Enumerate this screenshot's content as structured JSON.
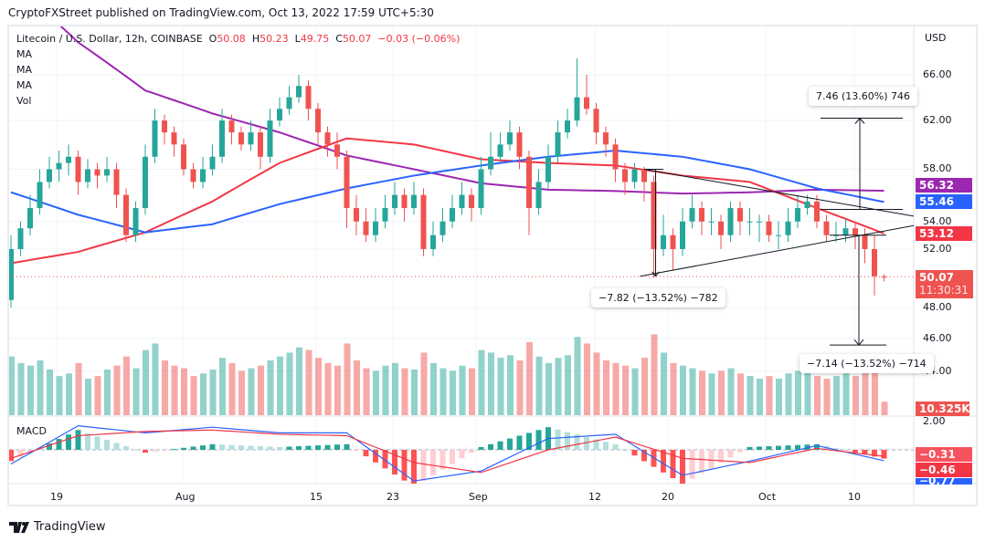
{
  "header": {
    "published": "CryptoFXStreet published on TradingView.com, Oct 13, 2022 17:59 UTC+5:30"
  },
  "legend": {
    "symbol": "Litecoin / U.S. Dollar, 12h, COINBASE",
    "o_label": "O",
    "o": "50.08",
    "h_label": "H",
    "h": "50.23",
    "l_label": "L",
    "l": "49.75",
    "c_label": "C",
    "c": "50.07",
    "change": "−0.03 (−0.06%)",
    "indicators": [
      "MA",
      "MA",
      "MA",
      "Vol"
    ],
    "macd": "MACD"
  },
  "price_axis": {
    "currency": "USD",
    "ticks": [
      "66.00",
      "62.00",
      "58.00",
      "54.00",
      "52.00",
      "48.00",
      "46.00",
      "44.00"
    ],
    "macd_ticks": [
      "2.00"
    ]
  },
  "labels": {
    "ma_purple": "56.32",
    "ma_blue": "55.46",
    "ma_red": "53.12",
    "last_price": "50.07",
    "countdown": "11:30:31",
    "volume": "10.325K",
    "macd_hist": "−0.31",
    "macd_signal": "−0.46",
    "macd_line": "−0.77"
  },
  "measures": {
    "up": "7.46 (13.60%) 746",
    "down_left": "−7.82 (−13.52%) −782",
    "down_right": "−7.14 (−13.52%) −714"
  },
  "time_axis": [
    "19",
    "Aug",
    "15",
    "23",
    "Sep",
    "12",
    "20",
    "Oct",
    "10"
  ],
  "footer": {
    "brand": "TradingView"
  },
  "colors": {
    "up": "#26a69a",
    "down": "#ef5350",
    "ma_purple": "#9c27b0",
    "ma_blue": "#2962ff",
    "ma_red": "#f23645",
    "macd": "#2962ff",
    "signal": "#f23645"
  },
  "chart_data": {
    "type": "candlestick",
    "title": "Litecoin / U.S. Dollar, 12h, COINBASE",
    "y_scale": "log",
    "ylim": [
      43,
      70
    ],
    "grid": true,
    "start_date": "2022-07-14",
    "end_date": "2022-10-13",
    "ohlc": [
      [
        48.5,
        53,
        48,
        52
      ],
      [
        52,
        54,
        51.5,
        53.5
      ],
      [
        53.5,
        56,
        53,
        55
      ],
      [
        55,
        58,
        54.5,
        57
      ],
      [
        57,
        59,
        56.5,
        58
      ],
      [
        58,
        59.5,
        57,
        58.5
      ],
      [
        58.5,
        60,
        57.5,
        59
      ],
      [
        59,
        59.5,
        56,
        57
      ],
      [
        57,
        58.8,
        56.5,
        58
      ],
      [
        58,
        58.5,
        56.5,
        57.5
      ],
      [
        57.5,
        59,
        57,
        58
      ],
      [
        58,
        58.5,
        55,
        56
      ],
      [
        56,
        56.5,
        52.5,
        53
      ],
      [
        53,
        55.5,
        52.5,
        55
      ],
      [
        55,
        60,
        54.5,
        59
      ],
      [
        59,
        63,
        58.5,
        62
      ],
      [
        62,
        62.5,
        60,
        61
      ],
      [
        61,
        61.5,
        59,
        60
      ],
      [
        60,
        60.5,
        57.5,
        58
      ],
      [
        58,
        58.5,
        56.5,
        57
      ],
      [
        57,
        59,
        56.5,
        58
      ],
      [
        58,
        60,
        57.5,
        59
      ],
      [
        59,
        63,
        58.5,
        62
      ],
      [
        62,
        62.5,
        60,
        61
      ],
      [
        61,
        61.5,
        59.5,
        60
      ],
      [
        60,
        62,
        59.5,
        61
      ],
      [
        61,
        61.5,
        58,
        59
      ],
      [
        59,
        63,
        58.5,
        62
      ],
      [
        62,
        64,
        61.5,
        63
      ],
      [
        63,
        65,
        62.5,
        64
      ],
      [
        64,
        66,
        63.5,
        65
      ],
      [
        65,
        65.5,
        62,
        63
      ],
      [
        63,
        63.5,
        60,
        61
      ],
      [
        61,
        61.5,
        59,
        60
      ],
      [
        60,
        61,
        58,
        59
      ],
      [
        59,
        59.5,
        53.5,
        55
      ],
      [
        55,
        56,
        53,
        54
      ],
      [
        54,
        55,
        52.5,
        53
      ],
      [
        53,
        55,
        52.5,
        54
      ],
      [
        54,
        56,
        53.5,
        55
      ],
      [
        55,
        57,
        54.5,
        56
      ],
      [
        56,
        56.5,
        54,
        55
      ],
      [
        55,
        57,
        54.5,
        56
      ],
      [
        56,
        56.5,
        51.5,
        52
      ],
      [
        52,
        54,
        51.5,
        53
      ],
      [
        53,
        55,
        52.5,
        54
      ],
      [
        54,
        56,
        53.5,
        55
      ],
      [
        55,
        57,
        54.5,
        56
      ],
      [
        56,
        56.5,
        54,
        55
      ],
      [
        55,
        59,
        54.5,
        58
      ],
      [
        58,
        61,
        57.5,
        59
      ],
      [
        59,
        61,
        58.5,
        60
      ],
      [
        60,
        62,
        59.5,
        61
      ],
      [
        61,
        61.5,
        58,
        59
      ],
      [
        59,
        59.5,
        53,
        55
      ],
      [
        55,
        58,
        54.5,
        57
      ],
      [
        57,
        60,
        56.5,
        59
      ],
      [
        59,
        62,
        58.5,
        61
      ],
      [
        61,
        63,
        60.5,
        62
      ],
      [
        62,
        67.5,
        61.5,
        64
      ],
      [
        64,
        66,
        62.5,
        63
      ],
      [
        63,
        63.5,
        60,
        61
      ],
      [
        61,
        61.5,
        59,
        60
      ],
      [
        60,
        60.5,
        57,
        58
      ],
      [
        58,
        58.5,
        56,
        57
      ],
      [
        57,
        58.5,
        56.5,
        58
      ],
      [
        58,
        58.2,
        55.5,
        57
      ],
      [
        57,
        57.5,
        50,
        52
      ],
      [
        52,
        54.5,
        51.5,
        53
      ],
      [
        53,
        53.5,
        50.5,
        52
      ],
      [
        52,
        55,
        51.5,
        54
      ],
      [
        54,
        56,
        53.5,
        55
      ],
      [
        55,
        55.5,
        53,
        54
      ],
      [
        54,
        55,
        53,
        54
      ],
      [
        54,
        54.5,
        52,
        53
      ],
      [
        53,
        55.5,
        52.5,
        55
      ],
      [
        55,
        55.5,
        53,
        54
      ],
      [
        54,
        55,
        53,
        54
      ],
      [
        54,
        54.5,
        52.5,
        54
      ],
      [
        54,
        54.5,
        52.5,
        53
      ],
      [
        53,
        54,
        52,
        53
      ],
      [
        53,
        55,
        52.5,
        54
      ],
      [
        54,
        56,
        53.5,
        55
      ],
      [
        55,
        56,
        54.5,
        55.5
      ],
      [
        55.5,
        56,
        53.5,
        54
      ],
      [
        54,
        54.5,
        52.5,
        53
      ],
      [
        53,
        54,
        52.5,
        53
      ],
      [
        53,
        54.2,
        52.5,
        53.5
      ],
      [
        53.5,
        54,
        52,
        53
      ],
      [
        53,
        53.5,
        51,
        52
      ],
      [
        52,
        53,
        48.8,
        50.1
      ],
      [
        50.08,
        50.23,
        49.75,
        50.07
      ]
    ],
    "volume_k": [
      45,
      40,
      38,
      42,
      35,
      30,
      32,
      40,
      28,
      30,
      35,
      38,
      45,
      36,
      50,
      55,
      42,
      38,
      36,
      30,
      32,
      35,
      44,
      40,
      34,
      36,
      38,
      42,
      45,
      48,
      52,
      50,
      44,
      40,
      38,
      55,
      42,
      36,
      34,
      38,
      40,
      36,
      35,
      48,
      40,
      36,
      34,
      38,
      36,
      50,
      48,
      44,
      46,
      42,
      56,
      45,
      40,
      44,
      46,
      60,
      55,
      48,
      42,
      40,
      38,
      36,
      44,
      62,
      48,
      40,
      38,
      36,
      34,
      32,
      34,
      36,
      32,
      30,
      28,
      30,
      28,
      32,
      34,
      36,
      30,
      28,
      30,
      32,
      30,
      34,
      44,
      10.325
    ],
    "ma_weekly_dates": [
      "2022-07-14",
      "2022-07-21",
      "2022-07-28",
      "2022-08-04",
      "2022-08-11",
      "2022-08-18",
      "2022-08-25",
      "2022-09-01",
      "2022-09-08",
      "2022-09-15",
      "2022-09-22",
      "2022-09-29",
      "2022-10-06",
      "2022-10-13"
    ],
    "ma_purple": [
      75,
      69,
      64.6,
      62.6,
      61,
      59.1,
      58,
      56.9,
      56.4,
      56.3,
      56.1,
      56.2,
      56.4,
      56.32
    ],
    "ma_red": [
      51,
      51.8,
      53.2,
      55.5,
      58.5,
      60.5,
      60,
      58.8,
      58.5,
      58.3,
      57.5,
      57,
      55,
      53.12
    ],
    "ma_blue": [
      56.2,
      54.5,
      53.2,
      53.8,
      55.3,
      56.5,
      57.5,
      58.3,
      59,
      59.5,
      59,
      58,
      56.5,
      55.46
    ],
    "macd_line": [
      -1.0,
      1.7,
      1.2,
      1.6,
      1.2,
      1.2,
      -2.2,
      -1.5,
      0.8,
      1.1,
      -1.8,
      -0.8,
      0.3,
      -0.77
    ],
    "macd_signal": [
      -0.6,
      1.0,
      1.3,
      1.4,
      1.1,
      1.0,
      -0.9,
      -1.6,
      0.0,
      0.9,
      -0.6,
      -0.9,
      0.1,
      -0.46
    ]
  }
}
